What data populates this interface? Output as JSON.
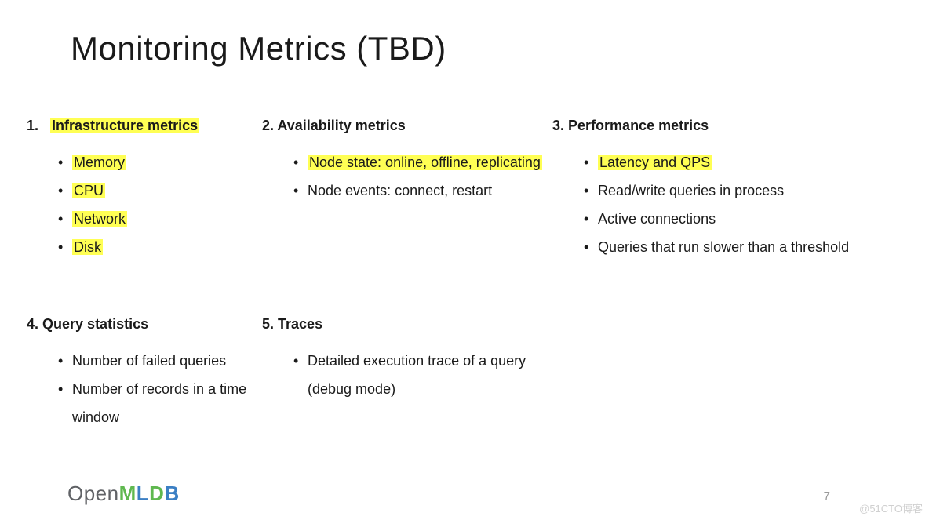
{
  "title": "Monitoring Metrics (TBD)",
  "highlight_color": "#ffff54",
  "text_color": "#1a1a1a",
  "background_color": "#ffffff",
  "title_fontsize": 42,
  "heading_fontsize": 18,
  "bullet_fontsize": 18,
  "sections": [
    {
      "num": "1.",
      "heading": "Infrastructure metrics",
      "heading_highlight": true,
      "items": [
        {
          "text": "Memory",
          "highlight": true
        },
        {
          "text": "CPU",
          "highlight": true
        },
        {
          "text": "Network",
          "highlight": true
        },
        {
          "text": "Disk",
          "highlight": true
        }
      ]
    },
    {
      "num": "2.",
      "heading": "Availability metrics",
      "heading_highlight": false,
      "items": [
        {
          "text": "Node state: online, offline, replicating",
          "highlight": true
        },
        {
          "text": "Node events: connect, restart",
          "highlight": false
        }
      ]
    },
    {
      "num": "3.",
      "heading": "Performance metrics",
      "heading_highlight": false,
      "items": [
        {
          "text": "Latency and QPS",
          "highlight": true
        },
        {
          "text": "Read/write queries in process",
          "highlight": false
        },
        {
          "text": "Active connections",
          "highlight": false
        },
        {
          "text": "Queries that run slower than a threshold",
          "highlight": false
        }
      ]
    },
    {
      "num": "4.",
      "heading": "Query statistics",
      "heading_highlight": false,
      "items": [
        {
          "text": "Number of failed queries",
          "highlight": false
        },
        {
          "text": "Number of records in a time window",
          "highlight": false
        }
      ]
    },
    {
      "num": "5.",
      "heading": "Traces",
      "heading_highlight": false,
      "items": [
        {
          "text": "Detailed execution trace of a query (debug mode)",
          "highlight": false
        }
      ]
    }
  ],
  "logo": {
    "open": "Open",
    "m": "M",
    "l": "L",
    "d": "D",
    "b": "B"
  },
  "page_number": "7",
  "watermark": "@51CTO博客"
}
